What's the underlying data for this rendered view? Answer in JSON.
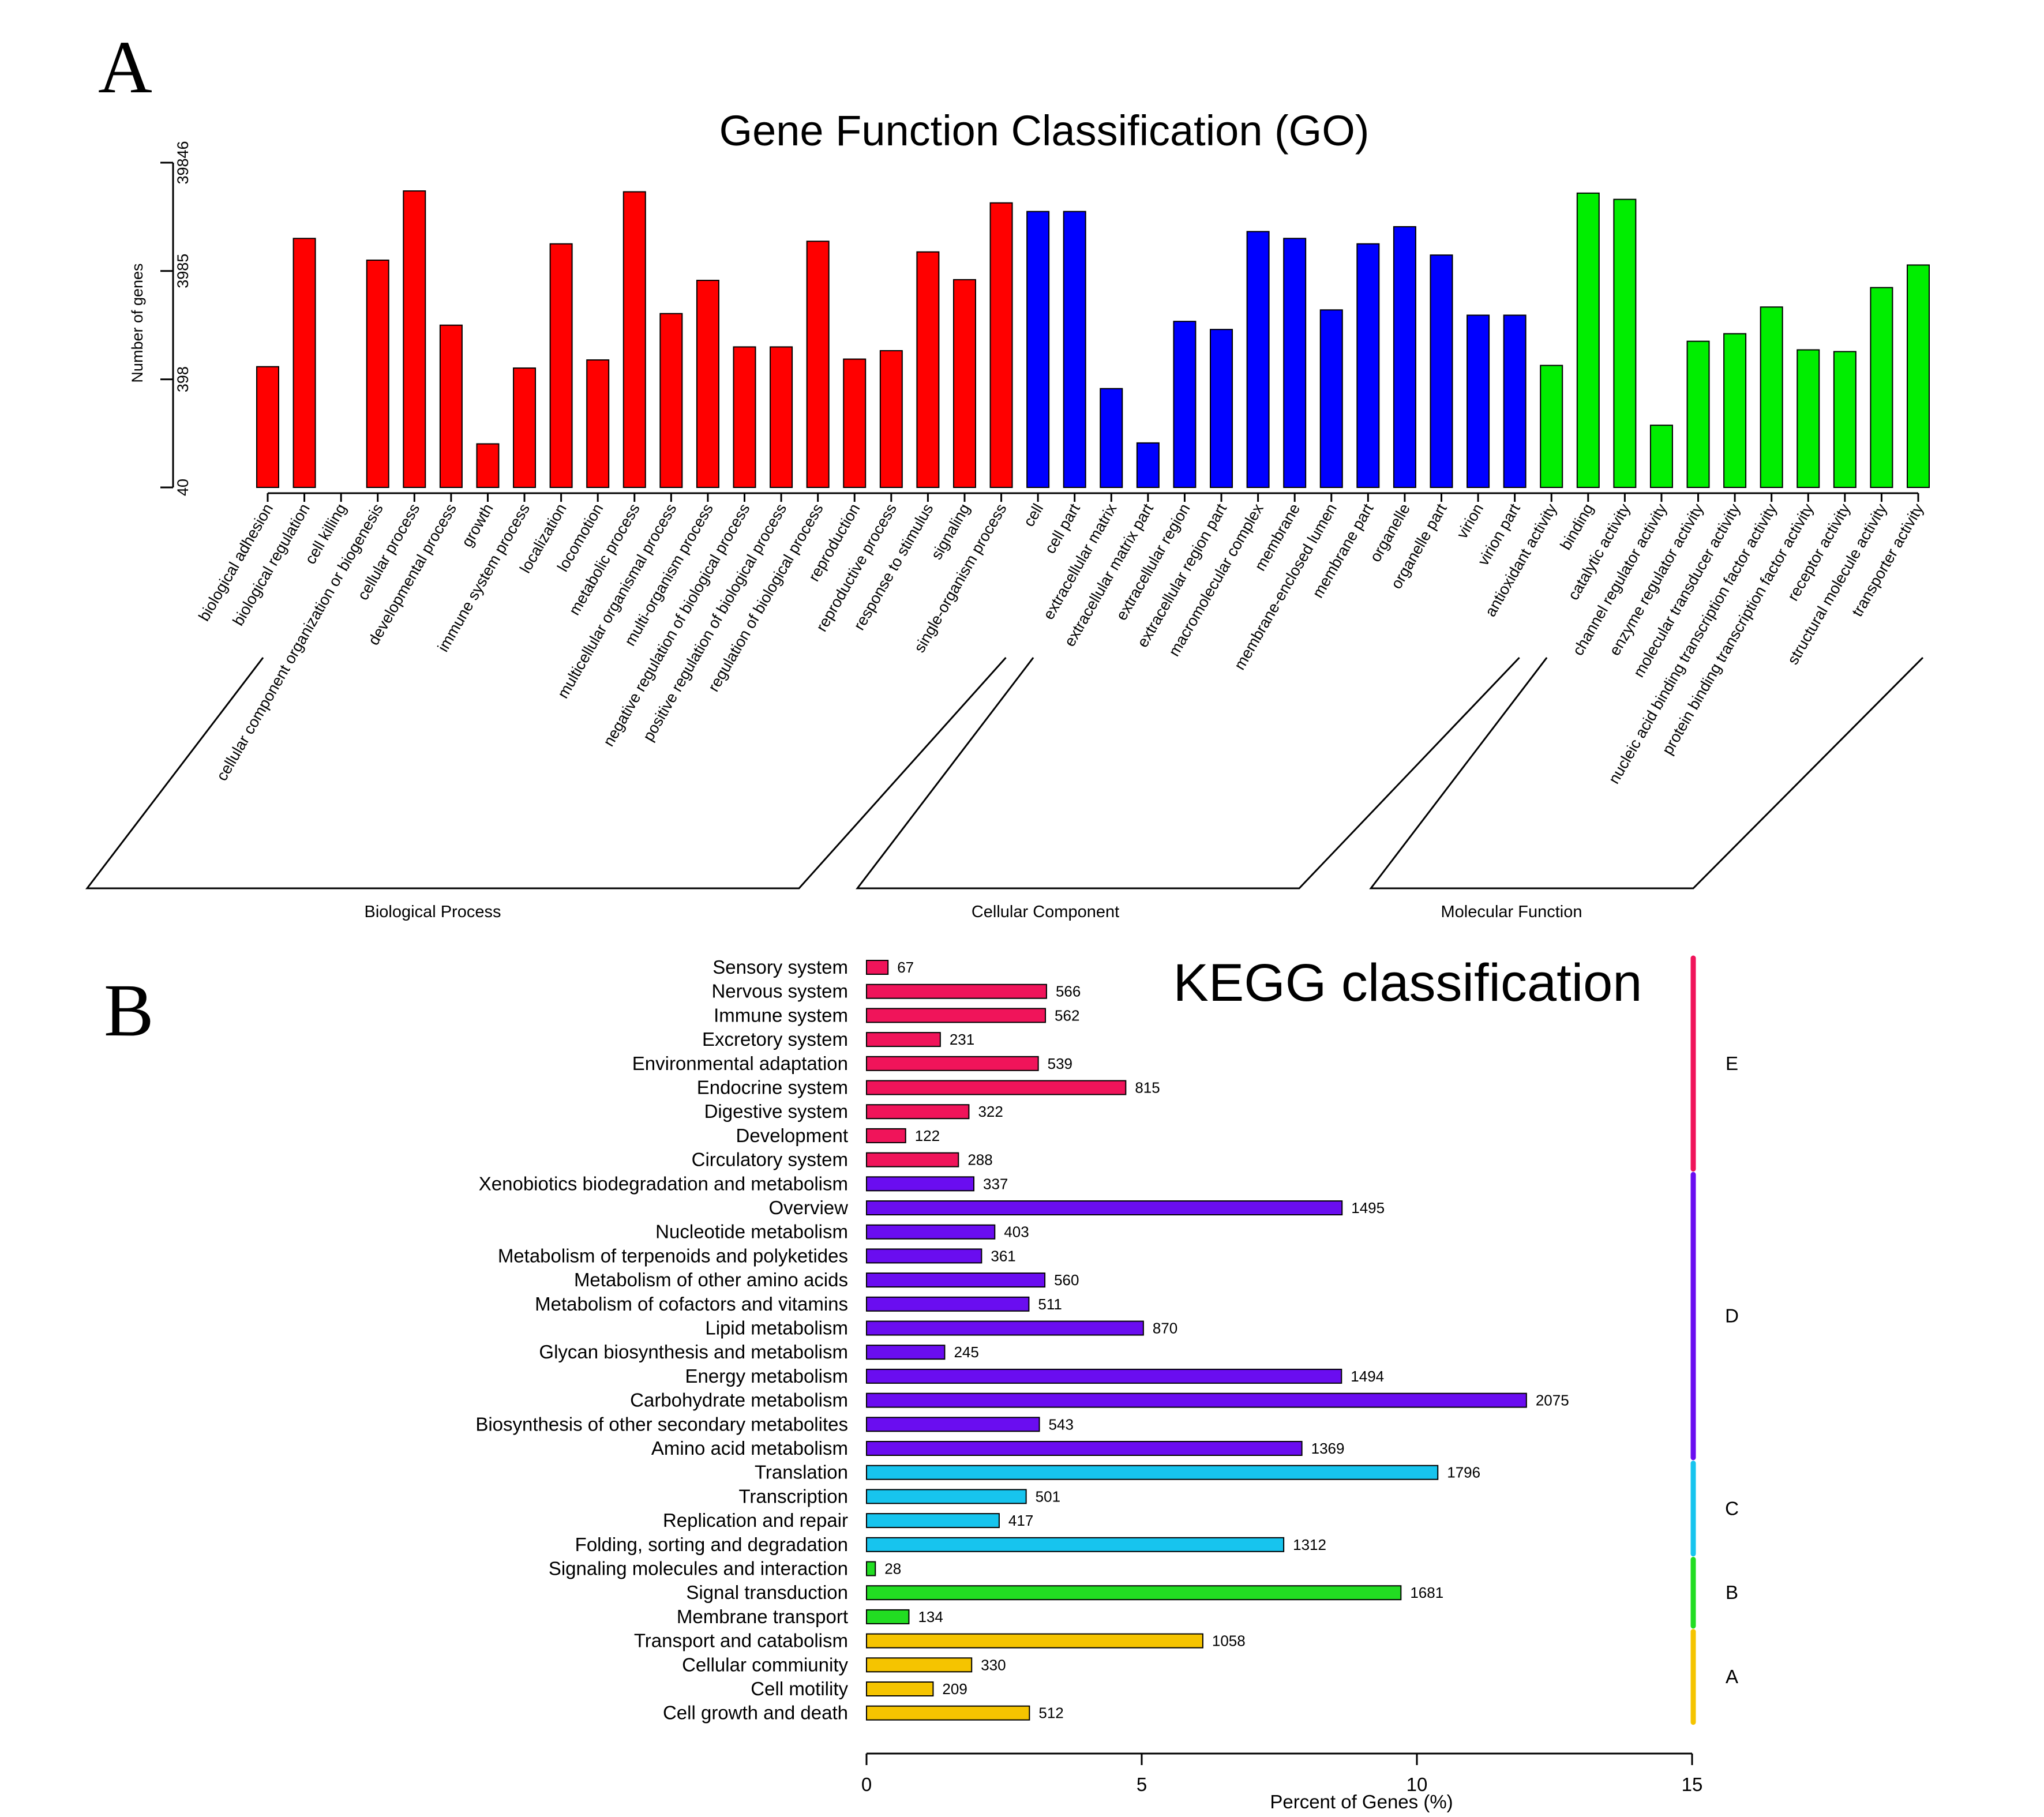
{
  "colors": {
    "go": {
      "bp": "#ff0000",
      "cc": "#0000ff",
      "mf": "#00ee00"
    },
    "kegg": {
      "E": "#f0145a",
      "D": "#6a0df0",
      "C": "#17c4ee",
      "B": "#22dd22",
      "A": "#f5c400"
    }
  },
  "chart_data": [
    {
      "panel": "A",
      "type": "bar",
      "title": "Gene Function Classification (GO)",
      "ylabel": "Number of genes",
      "yscale": "log",
      "ylim": [
        40,
        39846
      ],
      "yticks": [
        "40",
        "398",
        "3985",
        "39846"
      ],
      "groups": [
        {
          "key": "bp",
          "name": "Biological Process",
          "categories": [
            {
              "name": "biological adhesion",
              "value": 521
            },
            {
              "name": "biological regulation",
              "value": 7962
            },
            {
              "name": "cell killing",
              "value": 40
            },
            {
              "name": "cellular component organization or biogenesis",
              "value": 5013
            },
            {
              "name": "cellular process",
              "value": 21839
            },
            {
              "name": "developmental process",
              "value": 1259
            },
            {
              "name": "growth",
              "value": 101
            },
            {
              "name": "immune system process",
              "value": 506
            },
            {
              "name": "localization",
              "value": 7096
            },
            {
              "name": "locomotion",
              "value": 601
            },
            {
              "name": "metabolic process",
              "value": 21454
            },
            {
              "name": "multicellular organismal process",
              "value": 1611
            },
            {
              "name": "multi-organism process",
              "value": 3263
            },
            {
              "name": "negative regulation of biological process",
              "value": 793
            },
            {
              "name": "positive regulation of biological process",
              "value": 793
            },
            {
              "name": "regulation of biological process",
              "value": 7493
            },
            {
              "name": "reproduction",
              "value": 612
            },
            {
              "name": "reproductive process",
              "value": 732
            },
            {
              "name": "response to stimulus",
              "value": 5976
            },
            {
              "name": "signaling",
              "value": 3313
            },
            {
              "name": "single-organism process",
              "value": 16951
            }
          ]
        },
        {
          "key": "cc",
          "name": "Cellular Component",
          "categories": [
            {
              "name": "cell",
              "value": 14108
            },
            {
              "name": "cell part",
              "value": 14108
            },
            {
              "name": "extracellular matrix",
              "value": 327
            },
            {
              "name": "extracellular matrix part",
              "value": 103
            },
            {
              "name": "extracellular region",
              "value": 1364
            },
            {
              "name": "extracellular region part",
              "value": 1149
            },
            {
              "name": "macromolecular complex",
              "value": 9212
            },
            {
              "name": "membrane",
              "value": 7962
            },
            {
              "name": "membrane-enclosed lumen",
              "value": 1741
            },
            {
              "name": "membrane part",
              "value": 7096
            },
            {
              "name": "organelle",
              "value": 10209
            },
            {
              "name": "organelle part",
              "value": 5589
            },
            {
              "name": "virion",
              "value": 1556
            },
            {
              "name": "virion part",
              "value": 1556
            }
          ]
        },
        {
          "key": "mf",
          "name": "Molecular Function",
          "categories": [
            {
              "name": "antioxidant activity",
              "value": 535
            },
            {
              "name": "binding",
              "value": 20849
            },
            {
              "name": "catalytic activity",
              "value": 18262
            },
            {
              "name": "channel regulator activity",
              "value": 150
            },
            {
              "name": "enzyme regulator activity",
              "value": 894
            },
            {
              "name": "molecular transducer activity",
              "value": 1050
            },
            {
              "name": "nucleic acid binding transcription factor activity",
              "value": 1852
            },
            {
              "name": "protein binding transcription factor activity",
              "value": 745
            },
            {
              "name": "receptor activity",
              "value": 718
            },
            {
              "name": "structural molecule activity",
              "value": 2800
            },
            {
              "name": "transporter activity",
              "value": 4523
            }
          ]
        }
      ]
    },
    {
      "panel": "B",
      "type": "bar",
      "orientation": "horizontal",
      "title": "KEGG classification",
      "xlabel": "Percent of Genes (%)",
      "xlim": [
        0,
        15
      ],
      "xticks": [
        0,
        5,
        10,
        15
      ],
      "groups": [
        {
          "label": "E",
          "items": [
            {
              "name": "Sensory system",
              "count": "67",
              "percent": 0.39
            },
            {
              "name": "Nervous system",
              "count": "566",
              "percent": 3.27
            },
            {
              "name": "Immune system",
              "count": "562",
              "percent": 3.25
            },
            {
              "name": "Excretory system",
              "count": "231",
              "percent": 1.34
            },
            {
              "name": "Environmental adaptation",
              "count": "539",
              "percent": 3.12
            },
            {
              "name": "Endocrine system",
              "count": "815",
              "percent": 4.71
            },
            {
              "name": "Digestive system",
              "count": "322",
              "percent": 1.86
            },
            {
              "name": "Development",
              "count": "122",
              "percent": 0.71
            },
            {
              "name": "Circulatory system",
              "count": "288",
              "percent": 1.67
            }
          ]
        },
        {
          "label": "D",
          "items": [
            {
              "name": "Xenobiotics biodegradation and metabolism",
              "count": "337",
              "percent": 1.95
            },
            {
              "name": "Overview",
              "count": "1495",
              "percent": 8.64
            },
            {
              "name": "Nucleotide metabolism",
              "count": "403",
              "percent": 2.33
            },
            {
              "name": "Metabolism of terpenoids and polyketides",
              "count": "361",
              "percent": 2.09
            },
            {
              "name": "Metabolism of other amino acids",
              "count": "560",
              "percent": 3.24
            },
            {
              "name": "Metabolism of cofactors and vitamins",
              "count": "511",
              "percent": 2.95
            },
            {
              "name": "Lipid metabolism",
              "count": "870",
              "percent": 5.03
            },
            {
              "name": "Glycan biosynthesis and metabolism",
              "count": "245",
              "percent": 1.42
            },
            {
              "name": "Energy metabolism",
              "count": "1494",
              "percent": 8.63
            },
            {
              "name": "Carbohydrate metabolism",
              "count": "2075",
              "percent": 11.99
            },
            {
              "name": "Biosynthesis of other secondary metabolites",
              "count": "543",
              "percent": 3.14
            },
            {
              "name": "Amino acid metabolism",
              "count": "1369",
              "percent": 7.91
            }
          ]
        },
        {
          "label": "C",
          "items": [
            {
              "name": "Translation",
              "count": "1796",
              "percent": 10.38
            },
            {
              "name": "Transcription",
              "count": "501",
              "percent": 2.9
            },
            {
              "name": "Replication and repair",
              "count": "417",
              "percent": 2.41
            },
            {
              "name": "Folding, sorting and degradation",
              "count": "1312",
              "percent": 7.58
            }
          ]
        },
        {
          "label": "B",
          "items": [
            {
              "name": "Signaling molecules and interaction",
              "count": "28",
              "percent": 0.16
            },
            {
              "name": "Signal transduction",
              "count": "1681",
              "percent": 9.71
            },
            {
              "name": "Membrane transport",
              "count": "134",
              "percent": 0.77
            }
          ]
        },
        {
          "label": "A",
          "items": [
            {
              "name": "Transport and catabolism",
              "count": "1058",
              "percent": 6.11
            },
            {
              "name": "Cellular commiunity",
              "count": "330",
              "percent": 1.91
            },
            {
              "name": "Cell motility",
              "count": "209",
              "percent": 1.21
            },
            {
              "name": "Cell growth and death",
              "count": "512",
              "percent": 2.96
            }
          ]
        }
      ]
    }
  ]
}
